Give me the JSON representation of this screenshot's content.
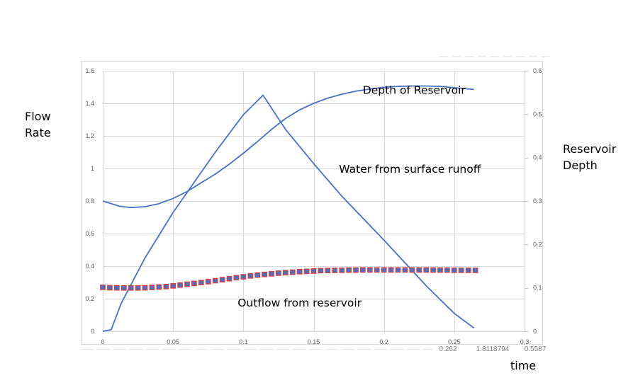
{
  "left_axis_title": [
    "Flow",
    "Rate"
  ],
  "right_axis_title": [
    "Reservoir",
    "Depth"
  ],
  "x_axis_title": "time",
  "clipped_fragments": [
    "0.262",
    "1.8118794",
    "0.5587"
  ],
  "chart_data": {
    "type": "line",
    "title": "",
    "xlim": [
      0,
      0.3
    ],
    "ylim_left": [
      0,
      1.6
    ],
    "ylim_right": [
      0,
      0.6
    ],
    "x_ticks": [
      "0",
      "0.05",
      "0.1",
      "0.15",
      "0.2",
      "0.25",
      "0.3"
    ],
    "y_left_ticks": [
      "0",
      "0.2",
      "0.4",
      "0.6",
      "0.8",
      "1",
      "1.2",
      "1.4",
      "1.6"
    ],
    "y_right_ticks": [
      "0",
      "0.1",
      "0.2",
      "0.3",
      "0.4",
      "0.5",
      "0.6"
    ],
    "grid": true,
    "series": [
      {
        "name": "Water from surface runoff",
        "axis": "left",
        "style": "line",
        "color": "#4472C4",
        "points": [
          [
            0,
            0
          ],
          [
            0.006,
            0.01
          ],
          [
            0.013,
            0.17
          ],
          [
            0.03,
            0.45
          ],
          [
            0.05,
            0.73
          ],
          [
            0.08,
            1.1
          ],
          [
            0.1,
            1.33
          ],
          [
            0.114,
            1.45
          ],
          [
            0.13,
            1.24
          ],
          [
            0.15,
            1.03
          ],
          [
            0.17,
            0.83
          ],
          [
            0.2,
            0.56
          ],
          [
            0.23,
            0.28
          ],
          [
            0.25,
            0.11
          ],
          [
            0.264,
            0.02
          ]
        ]
      },
      {
        "name": "Depth of Reservoir",
        "axis": "right",
        "style": "line",
        "color": "#4472C4",
        "points": [
          [
            0,
            0.3
          ],
          [
            0.012,
            0.288
          ],
          [
            0.02,
            0.285
          ],
          [
            0.03,
            0.287
          ],
          [
            0.04,
            0.294
          ],
          [
            0.05,
            0.306
          ],
          [
            0.06,
            0.322
          ],
          [
            0.07,
            0.342
          ],
          [
            0.08,
            0.362
          ],
          [
            0.09,
            0.385
          ],
          [
            0.1,
            0.41
          ],
          [
            0.11,
            0.437
          ],
          [
            0.12,
            0.465
          ],
          [
            0.13,
            0.49
          ],
          [
            0.14,
            0.51
          ],
          [
            0.15,
            0.525
          ],
          [
            0.16,
            0.537
          ],
          [
            0.17,
            0.546
          ],
          [
            0.18,
            0.553
          ],
          [
            0.19,
            0.558
          ],
          [
            0.2,
            0.562
          ],
          [
            0.21,
            0.564
          ],
          [
            0.22,
            0.565
          ],
          [
            0.23,
            0.565
          ],
          [
            0.24,
            0.564
          ],
          [
            0.25,
            0.561
          ],
          [
            0.264,
            0.557
          ]
        ]
      },
      {
        "name": "Outflow from reservoir",
        "axis": "left",
        "style": "markers",
        "color": "#4472C4",
        "edge_color": "#E0393E",
        "x": [
          0,
          0.005,
          0.01,
          0.015,
          0.02,
          0.025,
          0.03,
          0.035,
          0.04,
          0.045,
          0.05,
          0.055,
          0.06,
          0.065,
          0.07,
          0.075,
          0.08,
          0.085,
          0.09,
          0.095,
          0.1,
          0.105,
          0.11,
          0.115,
          0.12,
          0.125,
          0.13,
          0.135,
          0.14,
          0.145,
          0.15,
          0.155,
          0.16,
          0.165,
          0.17,
          0.175,
          0.18,
          0.185,
          0.19,
          0.195,
          0.2,
          0.205,
          0.21,
          0.215,
          0.22,
          0.225,
          0.23,
          0.235,
          0.24,
          0.245,
          0.25,
          0.255,
          0.26,
          0.265
        ],
        "values": [
          0.27,
          0.268,
          0.267,
          0.266,
          0.266,
          0.266,
          0.267,
          0.269,
          0.272,
          0.275,
          0.279,
          0.284,
          0.289,
          0.294,
          0.299,
          0.305,
          0.311,
          0.317,
          0.323,
          0.329,
          0.335,
          0.34,
          0.345,
          0.349,
          0.353,
          0.357,
          0.36,
          0.363,
          0.366,
          0.368,
          0.37,
          0.372,
          0.373,
          0.374,
          0.375,
          0.376,
          0.376,
          0.377,
          0.377,
          0.377,
          0.377,
          0.377,
          0.377,
          0.377,
          0.377,
          0.377,
          0.377,
          0.376,
          0.376,
          0.376,
          0.375,
          0.375,
          0.375,
          0.374
        ]
      }
    ],
    "annotations": [
      {
        "text": "Depth of Reservoir",
        "x": 0.2215,
        "y": 1.48
      },
      {
        "text": "Water from surface runoff",
        "x": 0.2185,
        "y": 0.995
      },
      {
        "text": "Outflow from reservoir",
        "x": 0.14,
        "y": 0.175
      }
    ]
  }
}
